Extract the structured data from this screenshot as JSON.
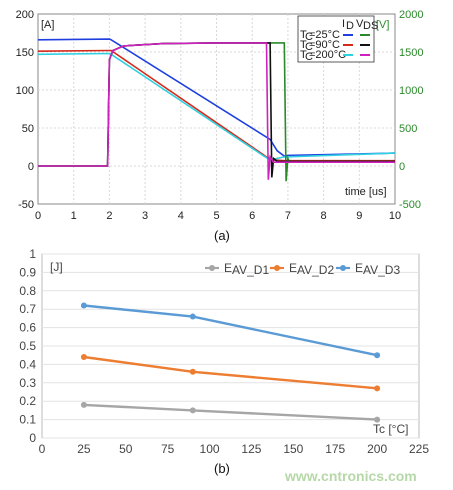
{
  "chart_data": [
    {
      "type": "line",
      "xlabel": "time [us]",
      "ylabel_left": "[A]",
      "ylabel_right": "[V]",
      "x_ticks": [
        "0",
        "1",
        "2",
        "3",
        "4",
        "5",
        "6",
        "7",
        "8",
        "9",
        "10"
      ],
      "y_ticks_left": [
        "-50",
        "0",
        "50",
        "100",
        "150",
        "200"
      ],
      "y_ticks_right": [
        "-500",
        "0",
        "500",
        "1000",
        "1500",
        "2000"
      ],
      "xlim": [
        0,
        10
      ],
      "ylim_left": [
        -50,
        200
      ],
      "ylim_right": [
        -500,
        2000
      ],
      "legend": {
        "header_id": "I",
        "header_id_sub": "D",
        "header_vds": "V",
        "header_vds_sub": "DS",
        "rows": [
          {
            "label": "T",
            "sub": "C",
            "value": "=25°C",
            "id_color": "#1f3fe0",
            "vds_color": "#2a8a2a"
          },
          {
            "label": "T",
            "sub": "C",
            "value": "=90°C",
            "id_color": "#d42a1a",
            "vds_color": "#111111"
          },
          {
            "label": "T",
            "sub": "C",
            "value": "=200°C",
            "id_color": "#2fd0e0",
            "vds_color": "#d020c0"
          }
        ]
      },
      "series": [
        {
          "name": "I_D Tc=25°C",
          "axis": "left",
          "color": "#1f3fe0",
          "x": [
            0,
            2.0,
            2.05,
            6.5,
            6.7,
            6.9,
            7.0,
            10
          ],
          "y": [
            166,
            167,
            166,
            35,
            20,
            13,
            14,
            17
          ]
        },
        {
          "name": "I_D Tc=90°C",
          "axis": "left",
          "color": "#d42a1a",
          "x": [
            0,
            2.0,
            2.05,
            6.4,
            6.6,
            6.9,
            10
          ],
          "y": [
            151,
            152,
            152,
            12,
            8,
            7,
            7
          ]
        },
        {
          "name": "I_D Tc=200°C",
          "axis": "left",
          "color": "#2fd0e0",
          "x": [
            0,
            2.0,
            2.05,
            6.3,
            6.5,
            6.9,
            10
          ],
          "y": [
            147,
            148,
            147,
            14,
            8,
            12,
            17
          ]
        },
        {
          "name": "V_DS Tc=25°C",
          "axis": "right",
          "color": "#2a8a2a",
          "x": [
            0,
            1.95,
            2.0,
            2.1,
            2.4,
            3.5,
            5,
            6.9,
            6.95,
            7.0,
            7.05,
            7.2,
            10
          ],
          "y": [
            0,
            0,
            1400,
            1520,
            1580,
            1610,
            1620,
            1620,
            -200,
            100,
            50,
            60,
            60
          ]
        },
        {
          "name": "V_DS Tc=90°C",
          "axis": "right",
          "color": "#111111",
          "x": [
            0,
            1.95,
            2.0,
            2.1,
            2.4,
            3.5,
            5,
            6.5,
            6.55,
            6.6,
            6.7,
            7.0,
            10
          ],
          "y": [
            0,
            0,
            1400,
            1520,
            1580,
            1610,
            1620,
            1620,
            -150,
            100,
            60,
            60,
            60
          ]
        },
        {
          "name": "V_DS Tc=200°C",
          "axis": "right",
          "color": "#d020c0",
          "x": [
            0,
            1.95,
            2.0,
            2.1,
            2.4,
            3.5,
            5,
            6.4,
            6.45,
            6.5,
            6.6,
            7.0,
            10
          ],
          "y": [
            0,
            0,
            1400,
            1520,
            1580,
            1610,
            1620,
            1620,
            -180,
            120,
            50,
            50,
            50
          ]
        }
      ],
      "caption": "(a)"
    },
    {
      "type": "line",
      "xlabel": "Tc [°C]",
      "ylabel": "[J]",
      "x_ticks": [
        "0",
        "25",
        "50",
        "75",
        "100",
        "125",
        "150",
        "175",
        "200",
        "225"
      ],
      "y_ticks": [
        "0",
        "0.1",
        "0.2",
        "0.3",
        "0.4",
        "0.5",
        "0.6",
        "0.7",
        "0.8",
        "0.9",
        "1"
      ],
      "xlim": [
        0,
        225
      ],
      "ylim": [
        0,
        1
      ],
      "legend": [
        {
          "label": "E",
          "sub": "AV_D1",
          "color": "#a6a6a6"
        },
        {
          "label": "E",
          "sub": "AV_D2",
          "color": "#ed7d31"
        },
        {
          "label": "E",
          "sub": "AV_D3",
          "color": "#5b9bd5"
        }
      ],
      "series": [
        {
          "name": "E_AV_D1",
          "color": "#a6a6a6",
          "x": [
            25,
            90,
            200
          ],
          "y": [
            0.18,
            0.15,
            0.1
          ]
        },
        {
          "name": "E_AV_D2",
          "color": "#ed7d31",
          "x": [
            25,
            90,
            200
          ],
          "y": [
            0.44,
            0.36,
            0.27
          ]
        },
        {
          "name": "E_AV_D3",
          "color": "#5b9bd5",
          "x": [
            25,
            90,
            200
          ],
          "y": [
            0.72,
            0.66,
            0.45
          ]
        }
      ],
      "caption": "(b)"
    }
  ],
  "watermark": "www.cntronics.com"
}
